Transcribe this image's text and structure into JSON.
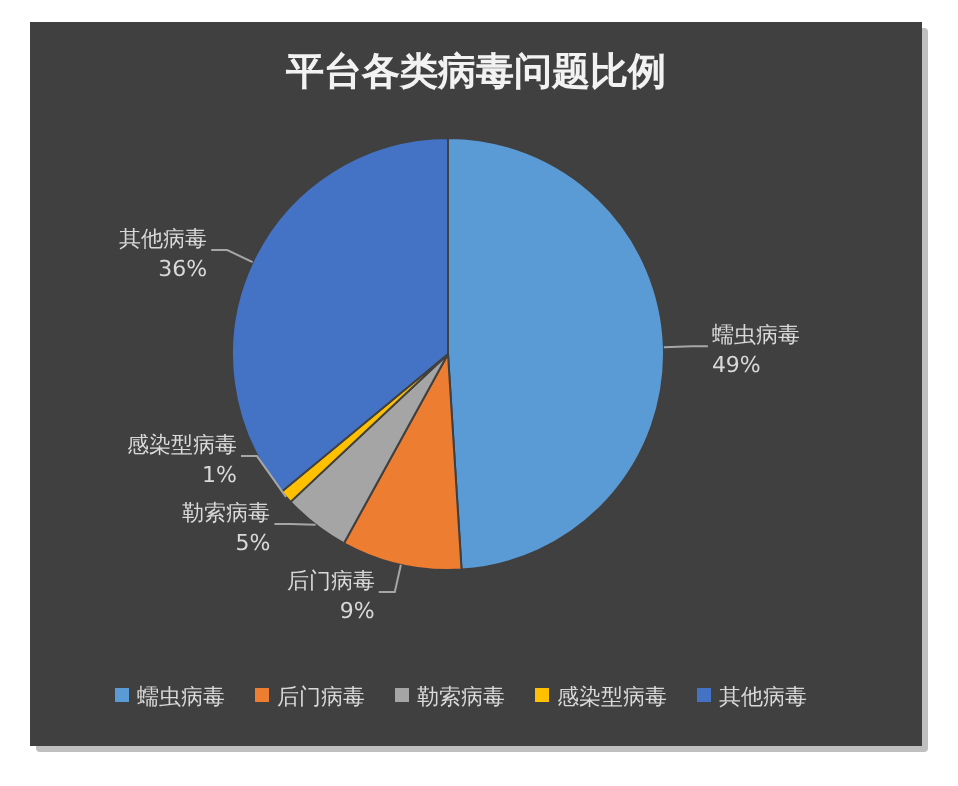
{
  "chart_data": {
    "type": "pie",
    "title": "平台各类病毒问题比例",
    "categories": [
      "蠕虫病毒",
      "后门病毒",
      "勒索病毒",
      "感染型病毒",
      "其他病毒"
    ],
    "values": [
      49,
      9,
      5,
      1,
      36
    ],
    "colors": [
      "#5b9bd5",
      "#ed7d31",
      "#a5a5a5",
      "#ffc000",
      "#4472c4"
    ],
    "value_labels": [
      "49%",
      "9%",
      "5%",
      "1%",
      "36%"
    ],
    "legend": "bottom"
  }
}
